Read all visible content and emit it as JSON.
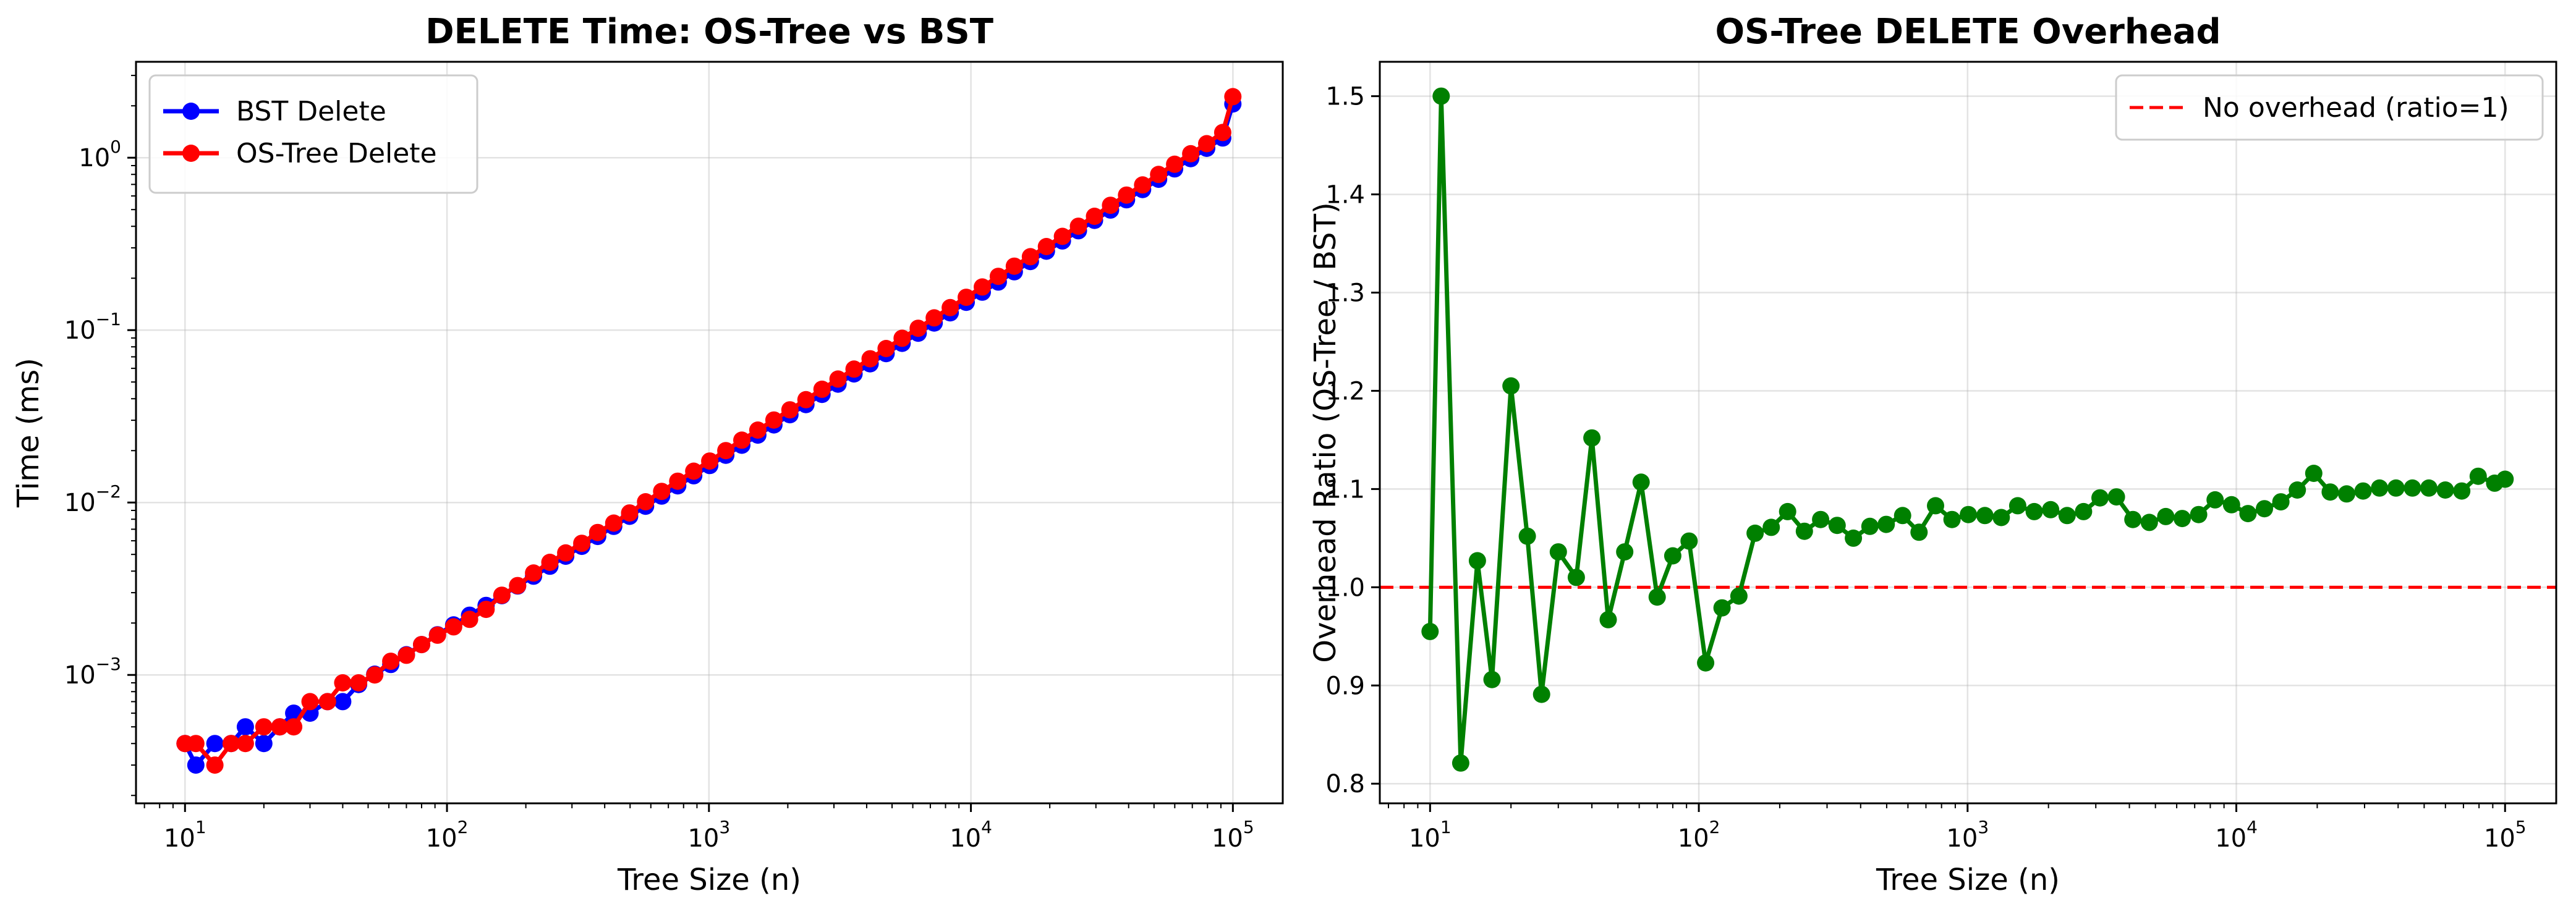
{
  "chart_data": [
    {
      "type": "line",
      "title": "DELETE Time: OS-Tree vs BST",
      "xlabel": "Tree Size (n)",
      "ylabel": "Time (ms)",
      "xscale": "log",
      "yscale": "log",
      "xlim": [
        6.5,
        155000
      ],
      "ylim": [
        0.00018,
        3.6
      ],
      "xticks": [
        10,
        100,
        1000,
        10000,
        100000
      ],
      "xtick_labels": [
        {
          "base": "10",
          "exp": "1"
        },
        {
          "base": "10",
          "exp": "2"
        },
        {
          "base": "10",
          "exp": "3"
        },
        {
          "base": "10",
          "exp": "4"
        },
        {
          "base": "10",
          "exp": "5"
        }
      ],
      "yticks": [
        0.001,
        0.01,
        0.1,
        1
      ],
      "ytick_labels": [
        {
          "base": "10",
          "exp": "−3"
        },
        {
          "base": "10",
          "exp": "−2"
        },
        {
          "base": "10",
          "exp": "−1"
        },
        {
          "base": "10",
          "exp": "0"
        }
      ],
      "grid": true,
      "legend_position": "top-left",
      "x": [
        10,
        11,
        13,
        15,
        17,
        20,
        23,
        26,
        30,
        35,
        40,
        46,
        53,
        61,
        70,
        80,
        92,
        106,
        122,
        141,
        162,
        186,
        214,
        247,
        284,
        327,
        376,
        433,
        498,
        573,
        660,
        760,
        875,
        1007,
        1160,
        1335,
        1537,
        1770,
        2038,
        2346,
        2701,
        3110,
        3580,
        4122,
        4746,
        5464,
        6290,
        7242,
        8337,
        9599,
        11051,
        12723,
        14648,
        16864,
        19415,
        22353,
        25735,
        29629,
        34112,
        39273,
        45214,
        52055,
        59932,
        69000,
        79440,
        91459,
        100000
      ],
      "series": [
        {
          "name": "BST Delete",
          "color": "#0000ff",
          "values": [
            0.0004,
            0.0003,
            0.0004,
            0.0004,
            0.0005,
            0.0004,
            0.0005,
            0.0006,
            0.0006,
            0.0007,
            0.0007,
            0.00088,
            0.00101,
            0.00115,
            0.00131,
            0.0015,
            0.00171,
            0.00195,
            0.00222,
            0.00253,
            0.00288,
            0.00328,
            0.00374,
            0.00427,
            0.00488,
            0.00557,
            0.00636,
            0.00727,
            0.00832,
            0.00952,
            0.0109,
            0.0125,
            0.0143,
            0.0164,
            0.0188,
            0.0215,
            0.0246,
            0.0282,
            0.0323,
            0.037,
            0.0424,
            0.0486,
            0.0557,
            0.0638,
            0.0731,
            0.0838,
            0.096,
            0.11,
            0.126,
            0.145,
            0.166,
            0.19,
            0.218,
            0.25,
            0.287,
            0.329,
            0.377,
            0.433,
            0.497,
            0.57,
            0.654,
            0.75,
            0.861,
            0.988,
            1.134,
            1.301,
            2.05
          ]
        },
        {
          "name": "OS-Tree Delete",
          "color": "#ff0000",
          "values": [
            0.0004,
            0.0004,
            0.0003,
            0.0004,
            0.0004,
            0.0005,
            0.0005,
            0.0005,
            0.0007,
            0.0007,
            0.0009,
            0.0009,
            0.001,
            0.0012,
            0.0013,
            0.0015,
            0.0017,
            0.0019,
            0.0021,
            0.0024,
            0.0029,
            0.0033,
            0.0039,
            0.0045,
            0.0051,
            0.0058,
            0.0067,
            0.0076,
            0.0087,
            0.0101,
            0.0116,
            0.0133,
            0.0152,
            0.0174,
            0.02,
            0.023,
            0.0263,
            0.0301,
            0.0345,
            0.0395,
            0.0454,
            0.052,
            0.0594,
            0.0682,
            0.0782,
            0.0897,
            0.1025,
            0.1178,
            0.135,
            0.155,
            0.1779,
            0.205,
            0.235,
            0.2665,
            0.3053,
            0.3497,
            0.4004,
            0.4573,
            0.5297,
            0.607,
            0.695,
            0.7995,
            0.9165,
            1.0547,
            1.2065,
            1.4003,
            2.26
          ]
        }
      ]
    },
    {
      "type": "line",
      "title": "OS-Tree DELETE Overhead",
      "xlabel": "Tree Size (n)",
      "ylabel": "Overhead Ratio (OS-Tree / BST)",
      "xscale": "log",
      "yscale": "linear",
      "xlim": [
        6.5,
        155000
      ],
      "ylim": [
        0.78,
        1.535
      ],
      "xticks": [
        10,
        100,
        1000,
        10000,
        100000
      ],
      "xtick_labels": [
        {
          "base": "10",
          "exp": "1"
        },
        {
          "base": "10",
          "exp": "2"
        },
        {
          "base": "10",
          "exp": "3"
        },
        {
          "base": "10",
          "exp": "4"
        },
        {
          "base": "10",
          "exp": "5"
        }
      ],
      "yticks": [
        0.8,
        0.9,
        1.0,
        1.1,
        1.2,
        1.3,
        1.4,
        1.5
      ],
      "ytick_labels": [
        "0.8",
        "0.9",
        "1.0",
        "1.1",
        "1.2",
        "1.3",
        "1.4",
        "1.5"
      ],
      "grid": true,
      "legend_position": "top-right",
      "reference_line": {
        "name": "No overhead (ratio=1)",
        "y": 1.0,
        "color": "#ff0000",
        "style": "dashed"
      },
      "x": [
        10,
        11,
        13,
        15,
        17,
        20,
        23,
        26,
        30,
        35,
        40,
        46,
        53,
        61,
        70,
        80,
        92,
        106,
        122,
        141,
        162,
        186,
        214,
        247,
        284,
        327,
        376,
        433,
        498,
        573,
        660,
        760,
        875,
        1007,
        1160,
        1335,
        1537,
        1770,
        2038,
        2346,
        2701,
        3110,
        3580,
        4122,
        4746,
        5464,
        6290,
        7242,
        8337,
        9599,
        11051,
        12723,
        14648,
        16864,
        19415,
        22353,
        25735,
        29629,
        34112,
        39273,
        45214,
        52055,
        59932,
        69000,
        79440,
        91459,
        100000
      ],
      "series": [
        {
          "name": "",
          "color": "#008000",
          "values": [
            0.955,
            1.5,
            0.821,
            1.027,
            0.906,
            1.205,
            1.052,
            0.891,
            1.036,
            1.01,
            1.152,
            0.967,
            1.036,
            1.107,
            0.99,
            1.032,
            1.047,
            0.923,
            0.979,
            0.991,
            1.055,
            1.061,
            1.077,
            1.057,
            1.069,
            1.063,
            1.05,
            1.062,
            1.064,
            1.073,
            1.056,
            1.083,
            1.069,
            1.074,
            1.073,
            1.071,
            1.083,
            1.077,
            1.079,
            1.073,
            1.077,
            1.091,
            1.092,
            1.069,
            1.066,
            1.072,
            1.07,
            1.074,
            1.089,
            1.084,
            1.075,
            1.08,
            1.087,
            1.099,
            1.116,
            1.097,
            1.095,
            1.098,
            1.101,
            1.101,
            1.101,
            1.101,
            1.099,
            1.098,
            1.113,
            1.106,
            1.11
          ]
        }
      ]
    }
  ]
}
